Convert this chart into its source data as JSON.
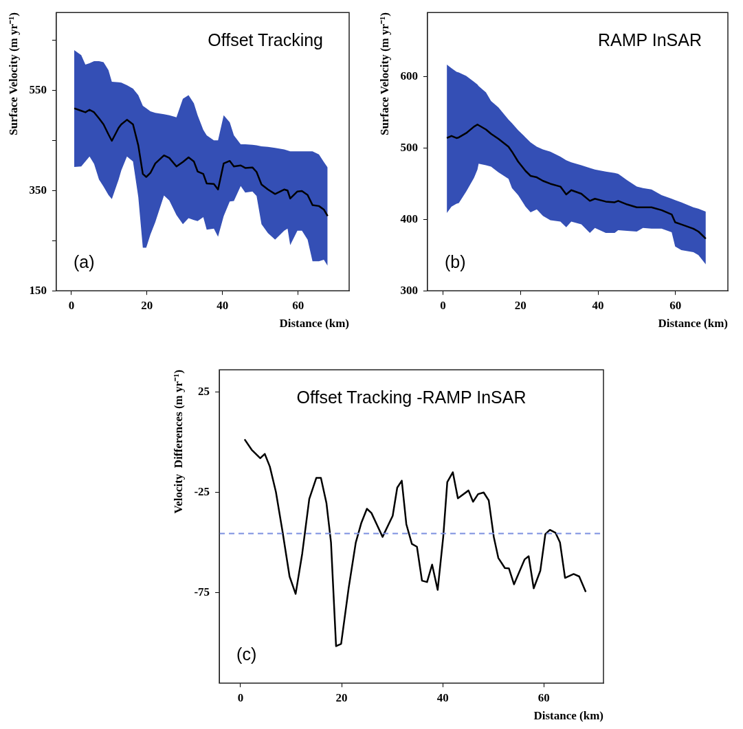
{
  "chart_data": [
    {
      "type": "line",
      "title": "Offset Tracking",
      "xlabel": "Distance (km)",
      "ylabel": "Surface Velocity (m yr⁻¹)",
      "annotations": [
        "(a)"
      ],
      "colors": [
        "#344fb5"
      ],
      "xlim": [
        -4,
        73.5
      ],
      "xticks": [
        0,
        20,
        40,
        60
      ],
      "ylim": [
        150,
        705
      ],
      "yticks": [
        150,
        {
          "value": 250,
          "label": null
        },
        350,
        {
          "value": 450,
          "label": null
        },
        550,
        {
          "value": 650,
          "label": null
        }
      ],
      "x": [
        0.75,
        2.6,
        3.7,
        4.8,
        6,
        7.3,
        8.5,
        9.8,
        10.7,
        12.5,
        13.2,
        14.7,
        16.3,
        17.7,
        18.9,
        19.8,
        20.9,
        22.2,
        24.5,
        25.9,
        27.8,
        29.5,
        31,
        32.4,
        33.4,
        34.9,
        35.8,
        37.7,
        38.8,
        40.3,
        41.9,
        43,
        44.8,
        46,
        47.9,
        49,
        50.3,
        52,
        53.9,
        56.3,
        57.2,
        57.9,
        59.8,
        61,
        62.5,
        63.8,
        65.5,
        66.8,
        67.8
      ],
      "series": [
        {
          "color": "#000000",
          "lower": [
            397,
            398,
            408,
            418,
            403,
            372,
            358,
            341,
            333,
            372,
            390,
            418,
            408,
            337,
            236,
            236,
            262,
            287,
            340,
            330,
            301,
            283,
            295,
            291,
            289,
            297,
            272,
            274,
            258,
            299,
            328,
            329,
            359,
            346,
            348,
            339,
            283,
            265,
            252,
            270,
            274,
            241,
            270,
            270,
            252,
            209,
            209,
            212,
            200
          ],
          "upper": [
            630,
            620,
            601,
            604,
            608,
            608,
            606,
            590,
            567,
            566,
            565,
            560,
            553,
            540,
            519,
            514,
            508,
            505,
            502,
            500,
            496,
            533,
            540,
            524,
            500,
            471,
            460,
            450,
            450,
            500,
            486,
            460,
            442,
            442,
            441,
            440,
            438,
            437,
            435,
            432,
            430,
            428,
            428,
            428,
            428,
            428,
            422,
            407,
            396
          ],
          "values": [
            514,
            509,
            506,
            511,
            506,
            494,
            482,
            462,
            449,
            475,
            482,
            491,
            482,
            440,
            383,
            377,
            385,
            404,
            420,
            415,
            398,
            407,
            416,
            408,
            388,
            383,
            364,
            363,
            352,
            404,
            409,
            398,
            400,
            395,
            396,
            387,
            362,
            352,
            343,
            352,
            350,
            334,
            348,
            349,
            341,
            321,
            319,
            312,
            299
          ]
        }
      ]
    },
    {
      "type": "line",
      "title": "RAMP InSAR",
      "xlabel": "Distance (km)",
      "ylabel": "Surface Velocity (m yr⁻¹)",
      "annotations": [
        "(b)"
      ],
      "colors": [
        "#344fb5"
      ],
      "xlim": [
        -4,
        73.5
      ],
      "xticks": [
        0,
        20,
        40,
        60
      ],
      "ylim": [
        300,
        690
      ],
      "yticks": [
        300,
        400,
        500,
        600
      ],
      "x": [
        1,
        2.2,
        3.5,
        4.1,
        6,
        8,
        8.9,
        9.2,
        11.1,
        12.4,
        14.3,
        16.9,
        17.8,
        19.4,
        21.3,
        22.6,
        24.2,
        25.8,
        27.7,
        30.3,
        31.8,
        33.1,
        35.7,
        37.9,
        39.2,
        42,
        44.3,
        45.2,
        47.5,
        50,
        51.6,
        53.8,
        56.4,
        59,
        59.9,
        61.5,
        64.6,
        65.9,
        67.8
      ],
      "series": [
        {
          "color": "#000000",
          "lower": [
            409,
            418,
            422,
            423,
            439,
            458,
            470,
            478,
            476,
            474,
            466,
            457,
            444,
            434,
            418,
            410,
            414,
            405,
            399,
            397,
            389,
            397,
            393,
            381,
            388,
            381,
            381,
            385,
            384,
            383,
            388,
            387,
            387,
            382,
            362,
            357,
            354,
            350,
            337
          ],
          "upper": [
            617,
            612,
            607,
            606,
            601,
            593,
            589,
            587,
            578,
            566,
            557,
            540,
            535,
            525,
            515,
            508,
            502,
            498,
            495,
            488,
            483,
            480,
            476,
            472,
            470,
            467,
            465,
            464,
            455,
            446,
            444,
            442,
            434,
            429,
            427,
            424,
            417,
            415,
            411
          ],
          "values": [
            514,
            517,
            514,
            515,
            521,
            530,
            533,
            532,
            526,
            520,
            513,
            502,
            495,
            481,
            468,
            461,
            459,
            454,
            450,
            446,
            435,
            441,
            436,
            426,
            429,
            425,
            424,
            426,
            421,
            417,
            417,
            417,
            413,
            407,
            396,
            393,
            387,
            383,
            373
          ]
        }
      ]
    },
    {
      "type": "line",
      "title": "Offset Tracking -RAMP InSAR",
      "xlabel": "Distance (km)",
      "ylabel": "Velocity  Differences (m yr⁻¹)",
      "annotations": [
        "(c)"
      ],
      "xlim": [
        -4.2,
        71.8
      ],
      "xticks": [
        0,
        20,
        40,
        60
      ],
      "ylim": [
        -120,
        36
      ],
      "yticks": [
        -75,
        -25,
        25
      ],
      "ref_lines": [
        {
          "axis": "y",
          "value": -45.5,
          "color": "#7b8fe0",
          "line_style": "dashed"
        }
      ],
      "color": "#000000",
      "x": [
        0.8,
        2.2,
        3.9,
        4.8,
        5.8,
        7,
        8.3,
        9.7,
        10.9,
        12.2,
        13.6,
        15,
        15.9,
        17,
        17.9,
        18.9,
        19.9,
        21.4,
        22.8,
        23.9,
        25,
        25.9,
        28.1,
        30.1,
        31,
        31.9,
        32.8,
        33.9,
        34.9,
        35.9,
        36.9,
        37.9,
        39,
        40.1,
        40.9,
        42,
        43,
        45.1,
        46,
        47,
        48.1,
        49.1,
        50.1,
        51,
        52.3,
        53.1,
        54.1,
        56.2,
        57,
        58,
        59.3,
        60.3,
        61.2,
        62.3,
        63.2,
        64.2,
        65.9,
        67,
        68.3
      ],
      "values": [
        1.4,
        -3.8,
        -8,
        -5.9,
        -12.2,
        -24.8,
        -44.4,
        -66.9,
        -75.6,
        -55.6,
        -28.3,
        -17.8,
        -17.8,
        -30.4,
        -50,
        -101.6,
        -100.5,
        -72.5,
        -50,
        -40.2,
        -33.2,
        -35.3,
        -47.2,
        -36.7,
        -22.7,
        -19.2,
        -40.9,
        -50.7,
        -52.1,
        -69,
        -69.7,
        -61,
        -73.6,
        -47.2,
        -19.9,
        -15,
        -28,
        -24.1,
        -29.7,
        -25.9,
        -25.1,
        -29,
        -47.2,
        -57.7,
        -62.7,
        -62.9,
        -70.8,
        -58.4,
        -56.8,
        -72.8,
        -64.1,
        -45.8,
        -43.7,
        -45.1,
        -50,
        -67.6,
        -65.7,
        -66.9,
        -74.6
      ]
    }
  ]
}
